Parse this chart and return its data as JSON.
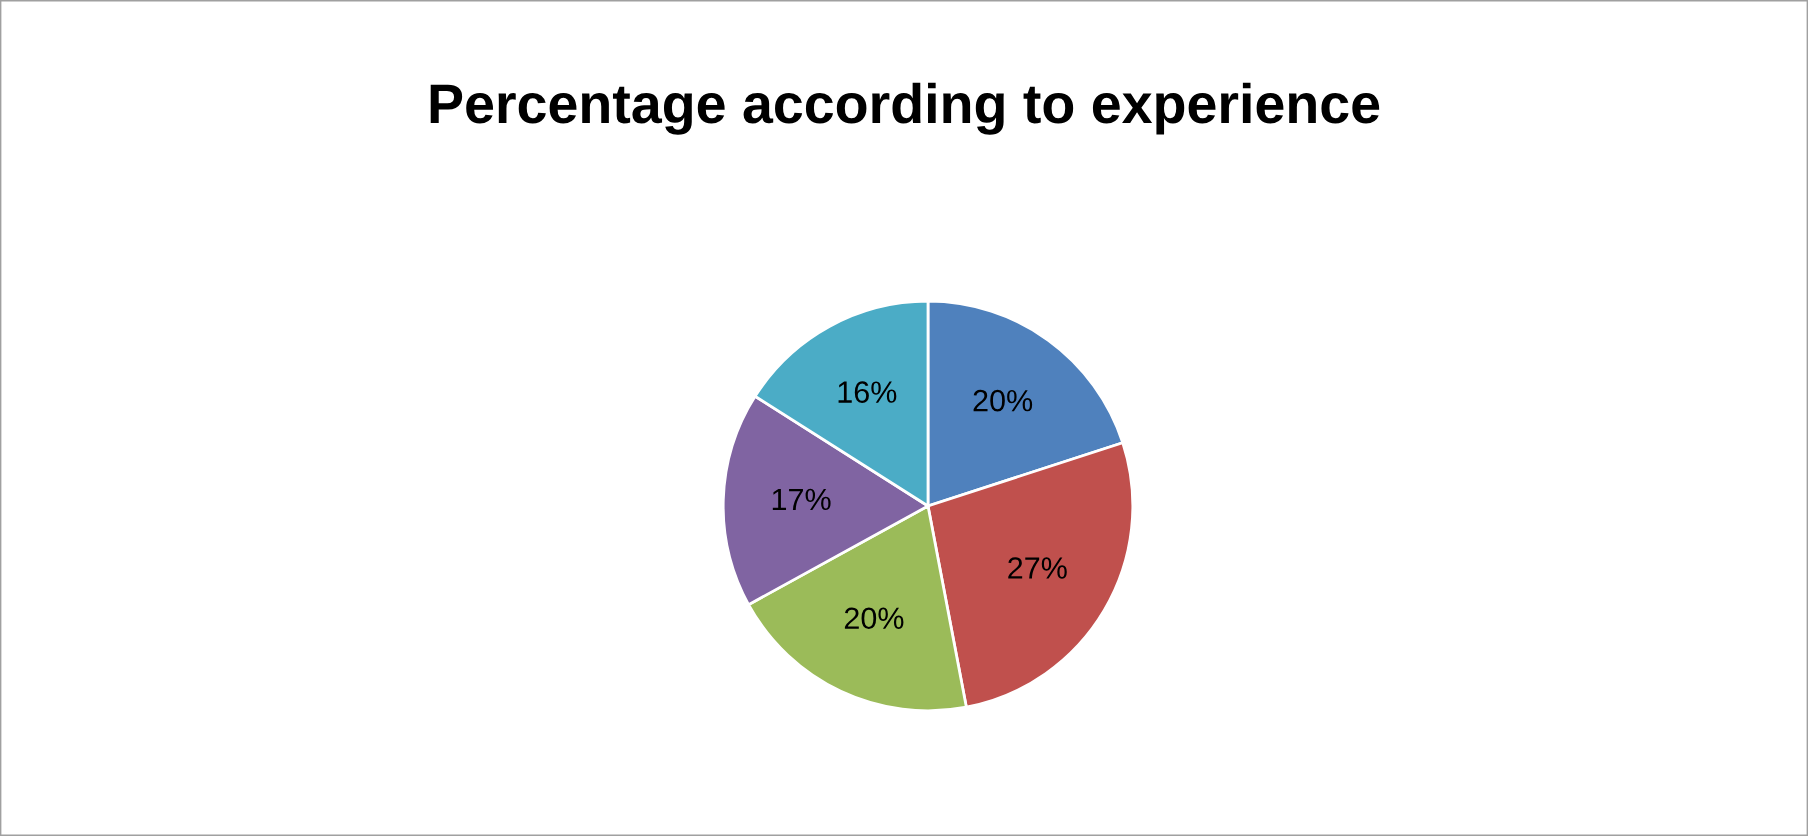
{
  "chart_data": {
    "type": "pie",
    "title": "Percentage according to experience",
    "categories": [
      null,
      null,
      null,
      null,
      null
    ],
    "values": [
      20,
      27,
      20,
      17,
      16
    ],
    "value_labels": [
      "20%",
      "27%",
      "20%",
      "17%",
      "16%"
    ],
    "colors": [
      "#4f81bd",
      "#c0504d",
      "#9bbb59",
      "#8064a2",
      "#4bacc6"
    ]
  }
}
